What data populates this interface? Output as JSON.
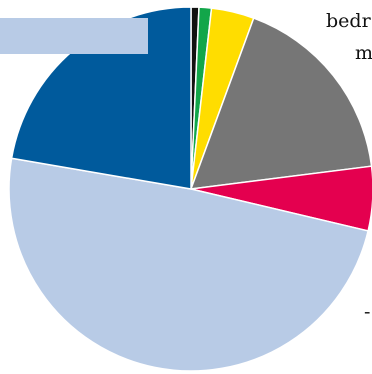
{
  "chart_data": {
    "type": "pie",
    "title": "",
    "legend_placement": "top-left",
    "slices": [
      {
        "value": 0.7,
        "color": "#111111"
      },
      {
        "value": 1.1,
        "color": "#12a64a"
      },
      {
        "value": 3.8,
        "color": "#ffdd00"
      },
      {
        "value": 17.4,
        "color": "#767676"
      },
      {
        "value": 5.7,
        "color": "#e4004f"
      },
      {
        "value": 49.0,
        "color": "#b8cbe6"
      },
      {
        "value": 22.3,
        "color": "#005a9c"
      }
    ],
    "legend_swatch_color": "#b8cbe6",
    "annotations": [
      {
        "text": "bedr"
      },
      {
        "text": "m"
      },
      {
        "text": "-"
      }
    ]
  }
}
